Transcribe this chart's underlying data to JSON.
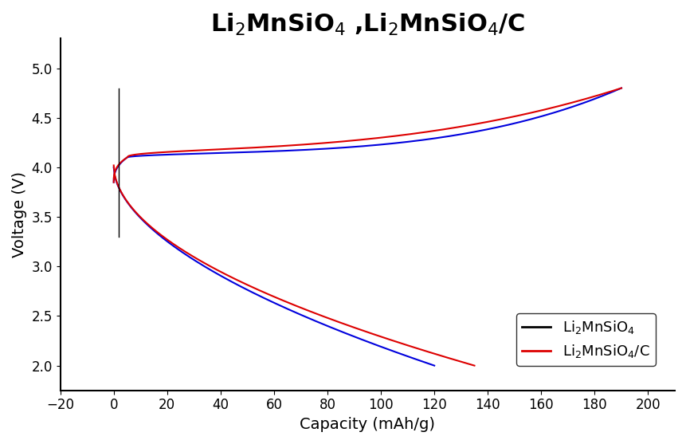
{
  "title": "Li$_2$MnSiO$_4$ ,Li$_2$MnSiO$_4$/C",
  "xlabel": "Capacity (mAh/g)",
  "ylabel": "Voltage (V)",
  "xlim": [
    -20,
    210
  ],
  "ylim": [
    1.75,
    5.3
  ],
  "xticks": [
    -20,
    0,
    20,
    40,
    60,
    80,
    100,
    120,
    140,
    160,
    180,
    200
  ],
  "yticks": [
    2.0,
    2.5,
    3.0,
    3.5,
    4.0,
    4.5,
    5.0
  ],
  "color_blue": "#0000dd",
  "color_red": "#dd0000",
  "color_black": "#000000",
  "legend_label_black": "Li$_2$MnSiO$_4$",
  "legend_label_red": "Li$_2$MnSiO$_4$/C",
  "title_fontsize": 22,
  "axis_label_fontsize": 14,
  "tick_fontsize": 12,
  "legend_fontsize": 13,
  "background_color": "#ffffff"
}
